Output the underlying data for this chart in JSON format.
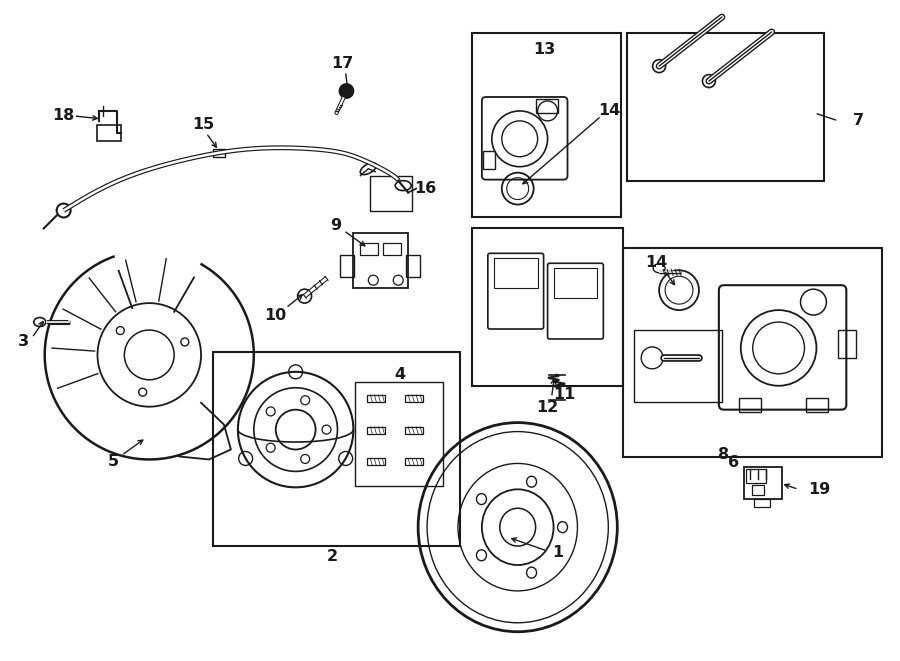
{
  "bg_color": "#ffffff",
  "line_color": "#1a1a1a",
  "fig_width": 9.0,
  "fig_height": 6.61,
  "dpi": 100,
  "component_lw": 1.3,
  "label_fontsize": 11.5
}
